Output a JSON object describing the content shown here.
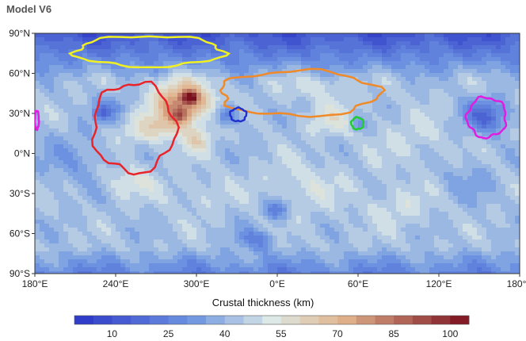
{
  "title": "Model V6",
  "chart_data": {
    "type": "heatmap",
    "title": "Model V6",
    "map": "global crustal thickness contour map, equirectangular projection",
    "x_ticks": [
      "180°E",
      "240°E",
      "300°E",
      "0°E",
      "60°E",
      "120°E",
      "180°E"
    ],
    "x_tick_values": [
      180,
      240,
      300,
      360,
      420,
      480,
      540
    ],
    "xlim": [
      180,
      540
    ],
    "y_ticks": [
      "90°N",
      "60°N",
      "30°N",
      "0°N",
      "30°S",
      "60°S",
      "90°S"
    ],
    "y_tick_values": [
      90,
      60,
      30,
      0,
      -30,
      -60,
      -90
    ],
    "ylim": [
      -90,
      90
    ],
    "colorbar": {
      "label": "Crustal thickness (km)",
      "ticks": [
        "10",
        "25",
        "40",
        "55",
        "70",
        "85",
        "100"
      ],
      "tick_values": [
        10,
        25,
        40,
        55,
        70,
        85,
        100
      ],
      "range": [
        0,
        105
      ],
      "step": 5,
      "low_color": "#2b35c7",
      "mid_color": "#dce9e6",
      "high_color": "#7a0f1e"
    },
    "outlines": [
      {
        "color": "#f0f022",
        "lon_range": [
          210,
          320
        ],
        "lat_range": [
          65,
          88
        ]
      },
      {
        "color": "#e8242a",
        "lon_range": [
          223,
          284
        ],
        "lat_range": [
          -14,
          53
        ]
      },
      {
        "color": "#f08a28",
        "lon_range": [
          317,
          435
        ],
        "lat_range": [
          28,
          62
        ]
      },
      {
        "color": "#2030d0",
        "lon_range": [
          325,
          337
        ],
        "lat_range": [
          24,
          34
        ]
      },
      {
        "color": "#22cc33",
        "lon_range": [
          415,
          424
        ],
        "lat_range": [
          18,
          27
        ]
      },
      {
        "color": "#e21ce0",
        "lon_range": [
          501,
          530
        ],
        "lat_range": [
          12,
          42
        ]
      },
      {
        "color": "#e21ce0",
        "lon_range": [
          180,
          183
        ],
        "lat_range": [
          18,
          32
        ]
      }
    ]
  }
}
